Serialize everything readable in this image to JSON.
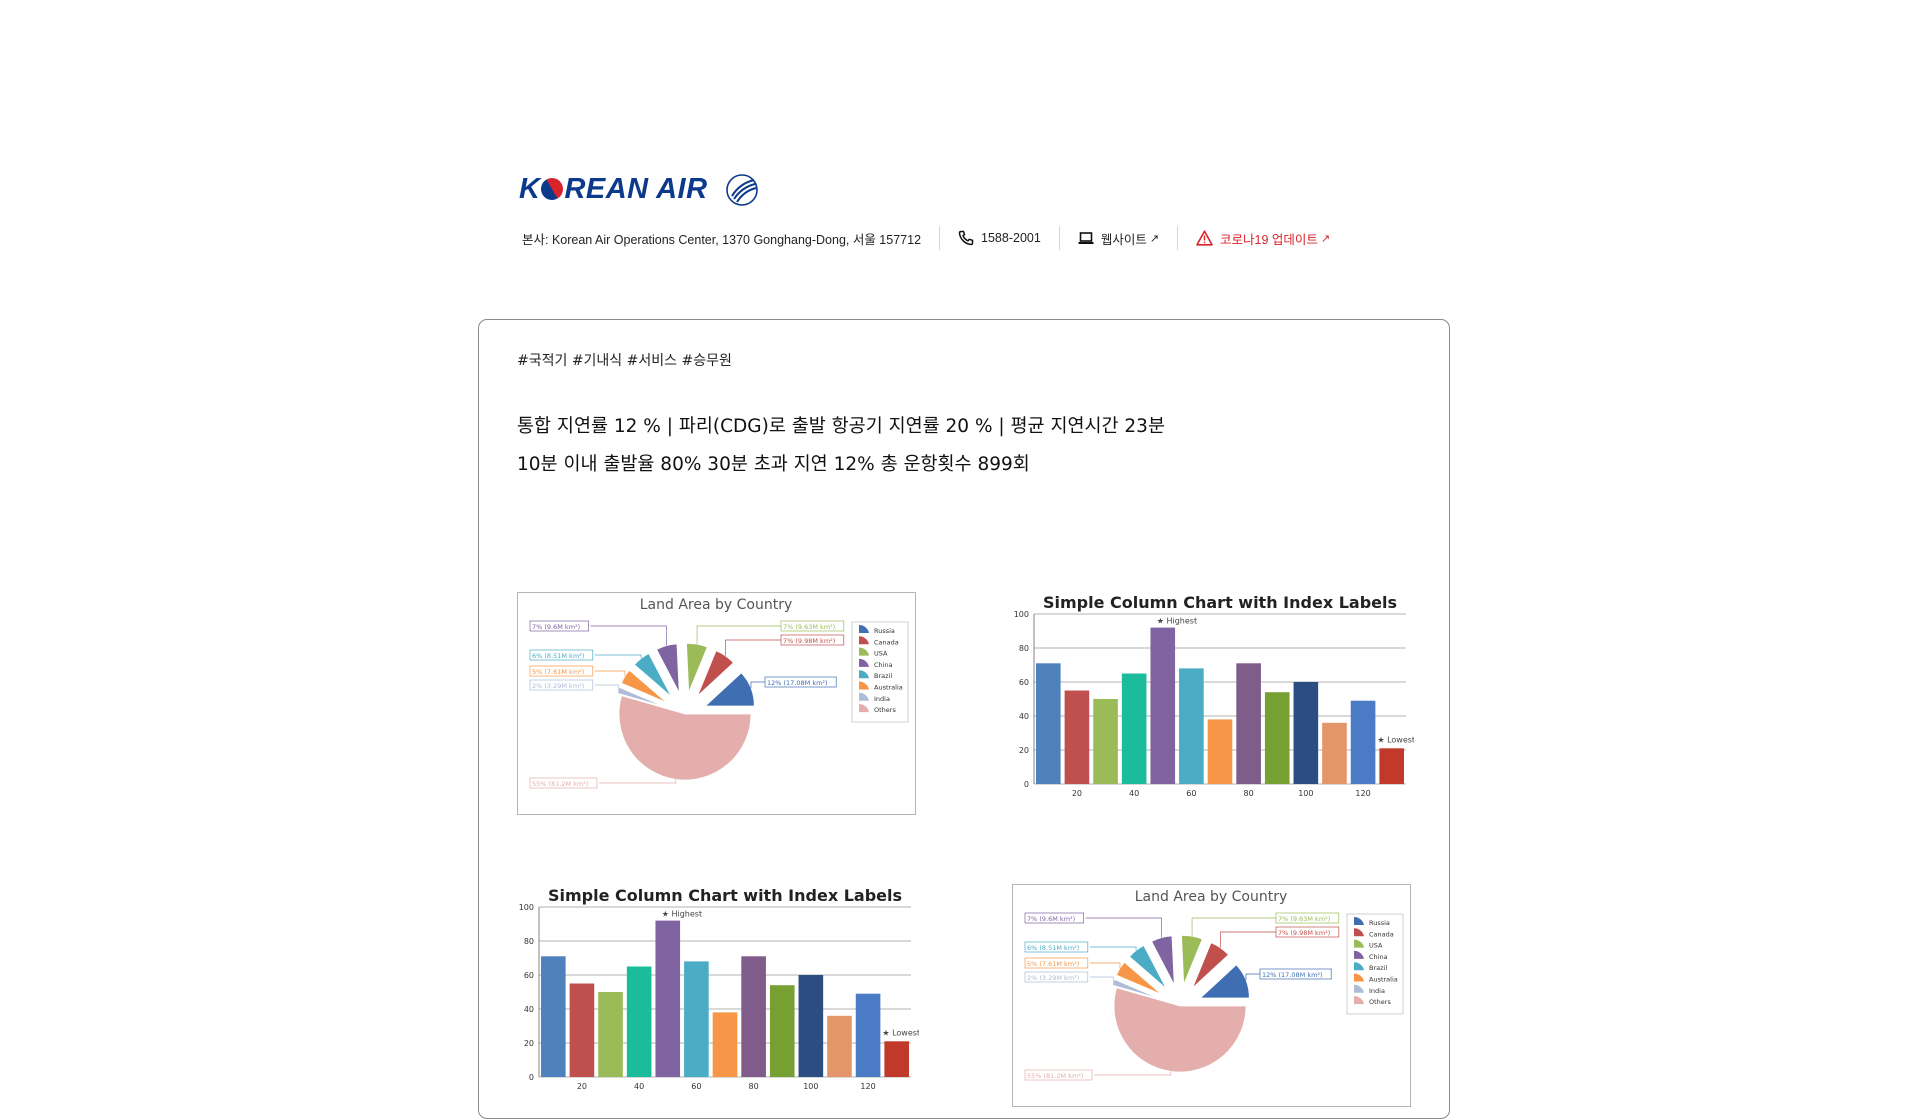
{
  "header": {
    "brand": "KOREAN AIR",
    "alliance": "SKYTEAM",
    "address": "본사: Korean Air Operations Center, 1370 Gonghang-Dong, 서울 157712",
    "phone": "1588-2001",
    "website_label": "웹사이트",
    "covid_label": "코로나19 업데이트",
    "covid_color": "#d7242b",
    "brand_color": "#0b3a8c"
  },
  "card": {
    "tags": "#국적기 #기내식 #서비스 #승무원",
    "line1": "통합 지연률 12 % | 파리(CDG)로 출발 항공기 지연률 20 % | 평균 지연시간 23분",
    "line2": "10분 이내 출발율 80% 30분 초과 지연 12% 총 운항횟수 899회"
  },
  "chart_data": [
    {
      "type": "pie",
      "title": "Land Area by Country",
      "slices": [
        {
          "name": "Russia",
          "pct": 12,
          "label": "12% (17.08M km²)",
          "color": "#3f6fb2"
        },
        {
          "name": "Canada",
          "pct": 7,
          "label": "7% (9.98M km²)",
          "color": "#c0504d"
        },
        {
          "name": "USA",
          "pct": 7,
          "label": "7% (9.63M km²)",
          "color": "#9bbb59"
        },
        {
          "name": "China",
          "pct": 7,
          "label": "7% (9.6M km²)",
          "color": "#8064a2"
        },
        {
          "name": "Brazil",
          "pct": 6,
          "label": "6% (8.51M km²)",
          "color": "#4bacc6"
        },
        {
          "name": "Australia",
          "pct": 5,
          "label": "5% (7.61M km²)",
          "color": "#f79646"
        },
        {
          "name": "India",
          "pct": 2,
          "label": "2% (3.29M km²)",
          "color": "#aebcd8"
        },
        {
          "name": "Others",
          "pct": 55,
          "label": "55% (81.2M km²)",
          "color": "#e3aeab"
        }
      ],
      "legend_position": "right"
    },
    {
      "type": "bar",
      "title": "Simple Column Chart with Index Labels",
      "x": [
        10,
        20,
        30,
        40,
        50,
        60,
        70,
        80,
        90,
        100,
        110,
        120,
        130
      ],
      "values": [
        71,
        55,
        50,
        65,
        92,
        68,
        38,
        71,
        54,
        60,
        36,
        49,
        21
      ],
      "colors": [
        "#4f81bd",
        "#c0504d",
        "#9bbb59",
        "#1abc9c",
        "#8064a2",
        "#4bacc6",
        "#f79646",
        "#7f5c8a",
        "#77a033",
        "#2c4d82",
        "#e5956a",
        "#4a7bc4",
        "#c0392b"
      ],
      "index_labels": {
        "4": "★ Highest",
        "12": "★ Lowest"
      },
      "xticks": [
        20,
        40,
        60,
        80,
        100,
        120
      ],
      "ylim": [
        0,
        100
      ],
      "yticks": [
        0,
        20,
        40,
        60,
        80,
        100
      ],
      "grid": true
    },
    {
      "type": "bar",
      "title": "Simple Column Chart with Index Labels",
      "x": [
        10,
        20,
        30,
        40,
        50,
        60,
        70,
        80,
        90,
        100,
        110,
        120,
        130
      ],
      "values": [
        71,
        55,
        50,
        65,
        92,
        68,
        38,
        71,
        54,
        60,
        36,
        49,
        21
      ],
      "colors": [
        "#4f81bd",
        "#c0504d",
        "#9bbb59",
        "#1abc9c",
        "#8064a2",
        "#4bacc6",
        "#f79646",
        "#7f5c8a",
        "#77a033",
        "#2c4d82",
        "#e5956a",
        "#4a7bc4",
        "#c0392b"
      ],
      "index_labels": {
        "4": "★ Highest",
        "12": "★ Lowest"
      },
      "xticks": [
        20,
        40,
        60,
        80,
        100,
        120
      ],
      "ylim": [
        0,
        100
      ],
      "yticks": [
        0,
        20,
        40,
        60,
        80,
        100
      ],
      "grid": true
    },
    {
      "type": "pie",
      "title": "Land Area by Country",
      "slices": [
        {
          "name": "Russia",
          "pct": 12,
          "label": "12% (17.08M km²)",
          "color": "#3f6fb2"
        },
        {
          "name": "Canada",
          "pct": 7,
          "label": "7% (9.98M km²)",
          "color": "#c0504d"
        },
        {
          "name": "USA",
          "pct": 7,
          "label": "7% (9.63M km²)",
          "color": "#9bbb59"
        },
        {
          "name": "China",
          "pct": 7,
          "label": "7% (9.6M km²)",
          "color": "#8064a2"
        },
        {
          "name": "Brazil",
          "pct": 6,
          "label": "6% (8.51M km²)",
          "color": "#4bacc6"
        },
        {
          "name": "Australia",
          "pct": 5,
          "label": "5% (7.61M km²)",
          "color": "#f79646"
        },
        {
          "name": "India",
          "pct": 2,
          "label": "2% (3.29M km²)",
          "color": "#aebcd8"
        },
        {
          "name": "Others",
          "pct": 55,
          "label": "55% (81.2M km²)",
          "color": "#e3aeab"
        }
      ],
      "legend_position": "right"
    }
  ]
}
